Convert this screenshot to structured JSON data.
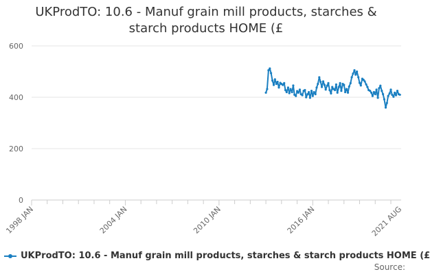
{
  "colors": {
    "series": "#1a7fc1",
    "grid": "#e6e6e6",
    "axis": "#cccccc"
  },
  "chart_data": {
    "type": "line",
    "title": "UKProdTO: 10.6 - Manuf grain mill products, starches & starch products HOME (£",
    "title_lines": [
      "UKProdTO: 10.6 - Manuf grain mill products, starches &",
      "starch products HOME (£"
    ],
    "xlabel": "",
    "ylabel": "",
    "ylim": [
      0,
      600
    ],
    "y_ticks": [
      0,
      200,
      400,
      600
    ],
    "xlim": [
      1998.0,
      2021.66
    ],
    "x_ticks": [
      {
        "label": "1998 JAN",
        "value": 1998.0
      },
      {
        "label": "2004 JAN",
        "value": 2004.0
      },
      {
        "label": "2010 JAN",
        "value": 2010.0
      },
      {
        "label": "2016 JAN",
        "value": 2016.0
      },
      {
        "label": "2021 AUG",
        "value": 2021.58
      }
    ],
    "grid": true,
    "legend": "bottom-left",
    "series": [
      {
        "name": "UKProdTO: 10.6 - Manuf grain mill products, starches & starch products HOME (£",
        "x": [
          2013.0,
          2013.08,
          2013.17,
          2013.25,
          2013.33,
          2013.42,
          2013.5,
          2013.58,
          2013.67,
          2013.75,
          2013.83,
          2013.92,
          2014.0,
          2014.08,
          2014.17,
          2014.25,
          2014.33,
          2014.42,
          2014.5,
          2014.58,
          2014.67,
          2014.75,
          2014.83,
          2014.92,
          2015.0,
          2015.08,
          2015.17,
          2015.25,
          2015.33,
          2015.42,
          2015.5,
          2015.58,
          2015.67,
          2015.75,
          2015.83,
          2015.92,
          2016.0,
          2016.08,
          2016.17,
          2016.25,
          2016.33,
          2016.42,
          2016.5,
          2016.58,
          2016.67,
          2016.75,
          2016.83,
          2016.92,
          2017.0,
          2017.08,
          2017.17,
          2017.25,
          2017.33,
          2017.42,
          2017.5,
          2017.58,
          2017.67,
          2017.75,
          2017.83,
          2017.92,
          2018.0,
          2018.08,
          2018.17,
          2018.25,
          2018.33,
          2018.42,
          2018.5,
          2018.58,
          2018.67,
          2018.75,
          2018.83,
          2018.92,
          2019.0,
          2019.08,
          2019.17,
          2019.25,
          2019.33,
          2019.42,
          2019.5,
          2019.58,
          2019.67,
          2019.75,
          2019.83,
          2019.92,
          2020.0,
          2020.08,
          2020.17,
          2020.25,
          2020.33,
          2020.42,
          2020.5,
          2020.58,
          2020.67,
          2020.75,
          2020.83,
          2020.92,
          2021.0,
          2021.08,
          2021.17,
          2021.25,
          2021.33,
          2021.42,
          2021.5,
          2021.58
        ],
        "values": [
          418,
          432,
          505,
          512,
          494,
          465,
          448,
          470,
          452,
          460,
          438,
          456,
          452,
          448,
          455,
          428,
          420,
          438,
          416,
          432,
          420,
          446,
          410,
          405,
          424,
          418,
          430,
          412,
          408,
          425,
          428,
          400,
          412,
          420,
          398,
          425,
          405,
          420,
          412,
          438,
          452,
          478,
          460,
          440,
          462,
          448,
          430,
          445,
          455,
          428,
          415,
          440,
          432,
          428,
          450,
          418,
          440,
          455,
          425,
          452,
          448,
          420,
          432,
          418,
          442,
          455,
          478,
          492,
          505,
          488,
          500,
          478,
          456,
          446,
          472,
          468,
          462,
          450,
          440,
          428,
          425,
          418,
          405,
          420,
          412,
          430,
          398,
          435,
          445,
          425,
          412,
          392,
          360,
          378,
          405,
          415,
          430,
          410,
          402,
          418,
          408,
          425,
          412,
          410
        ]
      }
    ]
  },
  "legend": {
    "label": "UKProdTO: 10.6 - Manuf grain mill products, starches & starch products HOME (£"
  },
  "source": {
    "label": "Source:"
  }
}
